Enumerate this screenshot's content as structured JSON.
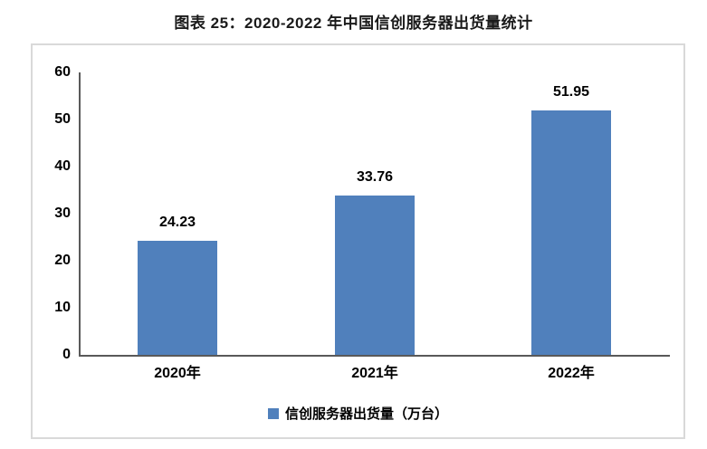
{
  "title": "图表 25：2020-2022 年中国信创服务器出货量统计",
  "chart_data": {
    "type": "bar",
    "title": "图表 25：2020-2022 年中国信创服务器出货量统计",
    "categories": [
      "2020年",
      "2021年",
      "2022年"
    ],
    "values": [
      24.23,
      33.76,
      51.95
    ],
    "value_labels": [
      "24.23",
      "33.76",
      "51.95"
    ],
    "xlabel": "",
    "ylabel": "",
    "ylim": [
      0,
      60
    ],
    "yticks": [
      0,
      10,
      20,
      30,
      40,
      50,
      60
    ],
    "grid": false,
    "legend_label": "信创服务器出货量（万台）",
    "legend_position": "bottom",
    "colors": {
      "bar": "#5080bc",
      "axis": "#595959",
      "box_border": "#d9d9d9",
      "text": "#000000",
      "title": "#1a1a1a"
    }
  }
}
